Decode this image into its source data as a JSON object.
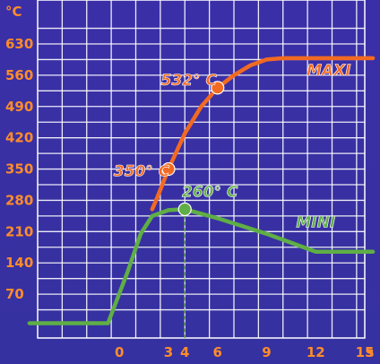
{
  "chart_data": {
    "type": "line",
    "y_unit": "°C",
    "x_unit": "s",
    "xlim": [
      -5,
      15
    ],
    "ylim": [
      0,
      630
    ],
    "x_ticks": [
      {
        "value": 0,
        "label": "0"
      },
      {
        "value": 3,
        "label": "3"
      },
      {
        "value": 4,
        "label": "4"
      },
      {
        "value": 6,
        "label": "6"
      },
      {
        "value": 9,
        "label": "9"
      },
      {
        "value": 12,
        "label": "12"
      },
      {
        "value": 15,
        "label": "15"
      }
    ],
    "y_ticks": [
      {
        "value": 70,
        "label": "70"
      },
      {
        "value": 140,
        "label": "140"
      },
      {
        "value": 210,
        "label": "210"
      },
      {
        "value": 280,
        "label": "280"
      },
      {
        "value": 350,
        "label": "350"
      },
      {
        "value": 420,
        "label": "420"
      },
      {
        "value": 490,
        "label": "490"
      },
      {
        "value": 560,
        "label": "560"
      },
      {
        "value": 630,
        "label": "630"
      }
    ],
    "grid": true,
    "series": [
      {
        "name": "MAXI",
        "color": "#f26a21",
        "points": [
          [
            2.0,
            260
          ],
          [
            2.3,
            285
          ],
          [
            3.0,
            350
          ],
          [
            4.0,
            430
          ],
          [
            5.0,
            490
          ],
          [
            6.0,
            532
          ],
          [
            7.0,
            560
          ],
          [
            8.0,
            582
          ],
          [
            9.0,
            595
          ],
          [
            10.0,
            598
          ],
          [
            12.0,
            598
          ],
          [
            15.5,
            598
          ]
        ]
      },
      {
        "name": "MINI",
        "color": "#5fae46",
        "points": [
          [
            -5.5,
            5
          ],
          [
            -0.7,
            5
          ],
          [
            0.5,
            120
          ],
          [
            1.3,
            205
          ],
          [
            2.0,
            245
          ],
          [
            3.0,
            258
          ],
          [
            4.0,
            260
          ],
          [
            6.0,
            240
          ],
          [
            9.0,
            205
          ],
          [
            12.0,
            165
          ],
          [
            15.5,
            165
          ]
        ]
      }
    ],
    "annotations": [
      {
        "text": "350° C",
        "x": 3,
        "y": 350,
        "color": "#f26a21"
      },
      {
        "text": "532° C",
        "x": 6,
        "y": 532,
        "color": "#f26a21"
      },
      {
        "text": "260° C",
        "x": 4,
        "y": 260,
        "color": "#5fae46"
      }
    ]
  }
}
